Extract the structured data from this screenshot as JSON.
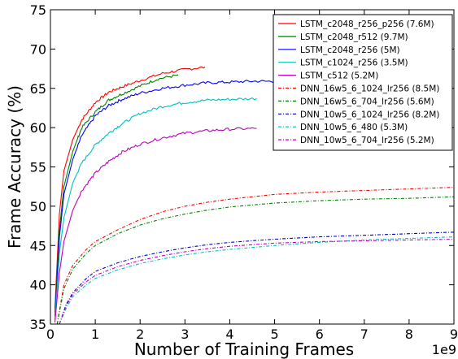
{
  "chart_data": {
    "type": "line",
    "title": "",
    "xlabel": "Number of Training Frames",
    "ylabel": "Frame Accuracy (%)",
    "x_multiplier_label": "1e9",
    "xlim": [
      0,
      9
    ],
    "ylim": [
      35,
      75
    ],
    "x_ticks": [
      "0",
      "1",
      "2",
      "3",
      "4",
      "5",
      "6",
      "7",
      "8",
      "9"
    ],
    "y_ticks": [
      "35",
      "40",
      "45",
      "50",
      "55",
      "60",
      "65",
      "70",
      "75"
    ],
    "grid": false,
    "legend_position": "top-right",
    "series": [
      {
        "name": "LSTM_c2048_r256_p256 (7.6M)",
        "color": "#ff0000",
        "style": "solid",
        "x": [
          0.1,
          0.2,
          0.3,
          0.5,
          0.7,
          1.0,
          1.3,
          1.6,
          2.0,
          2.5,
          3.0,
          3.45
        ],
        "y": [
          37.0,
          49.0,
          54.5,
          58.5,
          61.0,
          63.2,
          64.5,
          65.2,
          66.0,
          66.9,
          67.4,
          67.7
        ]
      },
      {
        "name": "LSTM_c2048_r512 (9.7M)",
        "color": "#008000",
        "style": "solid",
        "x": [
          0.1,
          0.2,
          0.3,
          0.5,
          0.7,
          1.0,
          1.3,
          1.6,
          2.0,
          2.4,
          2.85
        ],
        "y": [
          36.5,
          47.0,
          52.5,
          57.0,
          60.0,
          62.0,
          63.5,
          64.3,
          65.3,
          66.2,
          66.7
        ]
      },
      {
        "name": "LSTM_c2048_r256 (5M)",
        "color": "#0000ff",
        "style": "solid",
        "x": [
          0.1,
          0.2,
          0.3,
          0.5,
          0.7,
          1.0,
          1.3,
          1.6,
          2.0,
          2.5,
          3.0,
          3.5,
          4.0,
          4.5,
          5.0
        ],
        "y": [
          36.0,
          46.0,
          51.5,
          56.0,
          59.0,
          61.5,
          62.8,
          63.6,
          64.4,
          65.0,
          65.4,
          65.7,
          65.8,
          65.9,
          65.9
        ]
      },
      {
        "name": "LSTM_c1024_r256 (3.5M)",
        "color": "#00bfbf",
        "style": "solid",
        "x": [
          0.1,
          0.2,
          0.3,
          0.5,
          0.7,
          1.0,
          1.3,
          1.6,
          2.0,
          2.5,
          3.0,
          3.5,
          4.0,
          4.6
        ],
        "y": [
          35.5,
          44.0,
          48.5,
          53.0,
          55.5,
          57.8,
          59.3,
          60.5,
          61.8,
          62.7,
          63.2,
          63.5,
          63.6,
          63.7
        ]
      },
      {
        "name": "LSTM_c512 (5.2M)",
        "color": "#bf00bf",
        "style": "solid",
        "x": [
          0.1,
          0.2,
          0.3,
          0.5,
          0.7,
          1.0,
          1.3,
          1.6,
          2.0,
          2.5,
          3.0,
          3.5,
          4.0,
          4.6
        ],
        "y": [
          35.2,
          41.5,
          45.5,
          49.5,
          52.0,
          54.2,
          55.7,
          56.9,
          57.9,
          58.7,
          59.3,
          59.6,
          59.8,
          59.9
        ]
      },
      {
        "name": "DNN_16w5_6_1024_lr256 (8.5M)",
        "color": "#ff0000",
        "style": "dashdot",
        "x": [
          0.15,
          0.3,
          0.5,
          0.8,
          1.0,
          1.5,
          2.0,
          2.5,
          3.0,
          3.5,
          4.0,
          5.0,
          6.0,
          7.0,
          8.0,
          9.0
        ],
        "y": [
          35.0,
          40.0,
          42.5,
          44.5,
          45.5,
          47.0,
          48.3,
          49.3,
          50.0,
          50.5,
          50.9,
          51.5,
          51.8,
          52.0,
          52.2,
          52.4
        ]
      },
      {
        "name": "DNN_16w5_6_704_lr256 (5.6M)",
        "color": "#008000",
        "style": "dashdot",
        "x": [
          0.15,
          0.3,
          0.5,
          0.8,
          1.0,
          1.5,
          2.0,
          2.5,
          3.0,
          3.5,
          4.0,
          5.0,
          6.0,
          7.0,
          8.0,
          9.0
        ],
        "y": [
          35.0,
          39.5,
          42.0,
          44.0,
          45.0,
          46.5,
          47.6,
          48.4,
          49.0,
          49.5,
          49.9,
          50.4,
          50.7,
          50.9,
          51.0,
          51.2
        ]
      },
      {
        "name": "DNN_10w5_6_1024_lr256 (8.2M)",
        "color": "#0000bf",
        "style": "dashdot",
        "x": [
          0.2,
          0.35,
          0.5,
          0.8,
          1.0,
          1.5,
          2.0,
          2.5,
          3.0,
          3.5,
          4.0,
          5.0,
          6.0,
          7.0,
          8.0,
          9.0
        ],
        "y": [
          35.0,
          37.5,
          39.0,
          40.8,
          41.7,
          42.8,
          43.6,
          44.2,
          44.7,
          45.1,
          45.4,
          45.8,
          46.1,
          46.3,
          46.5,
          46.7
        ]
      },
      {
        "name": "DNN_10w5_6_480 (5.3M)",
        "color": "#00bfbf",
        "style": "dashdot",
        "x": [
          0.2,
          0.35,
          0.5,
          0.8,
          1.0,
          1.5,
          2.0,
          2.5,
          3.0,
          3.5,
          4.0,
          5.0,
          6.0,
          7.0,
          8.0,
          9.0
        ],
        "y": [
          35.0,
          37.0,
          38.5,
          40.0,
          40.8,
          41.9,
          42.7,
          43.3,
          43.8,
          44.2,
          44.5,
          45.0,
          45.4,
          45.7,
          45.9,
          46.1
        ]
      },
      {
        "name": "DNN_10w5_6_704_lr256 (5.2M)",
        "color": "#bf00bf",
        "style": "dashdot",
        "x": [
          0.2,
          0.35,
          0.5,
          0.8,
          1.0,
          1.5,
          2.0,
          2.5,
          3.0,
          3.5,
          4.0,
          5.0,
          6.0,
          7.0,
          8.0,
          9.0
        ],
        "y": [
          35.0,
          37.3,
          38.8,
          40.4,
          41.2,
          42.3,
          43.1,
          43.7,
          44.2,
          44.6,
          44.9,
          45.3,
          45.5,
          45.6,
          45.7,
          45.8
        ]
      }
    ]
  }
}
